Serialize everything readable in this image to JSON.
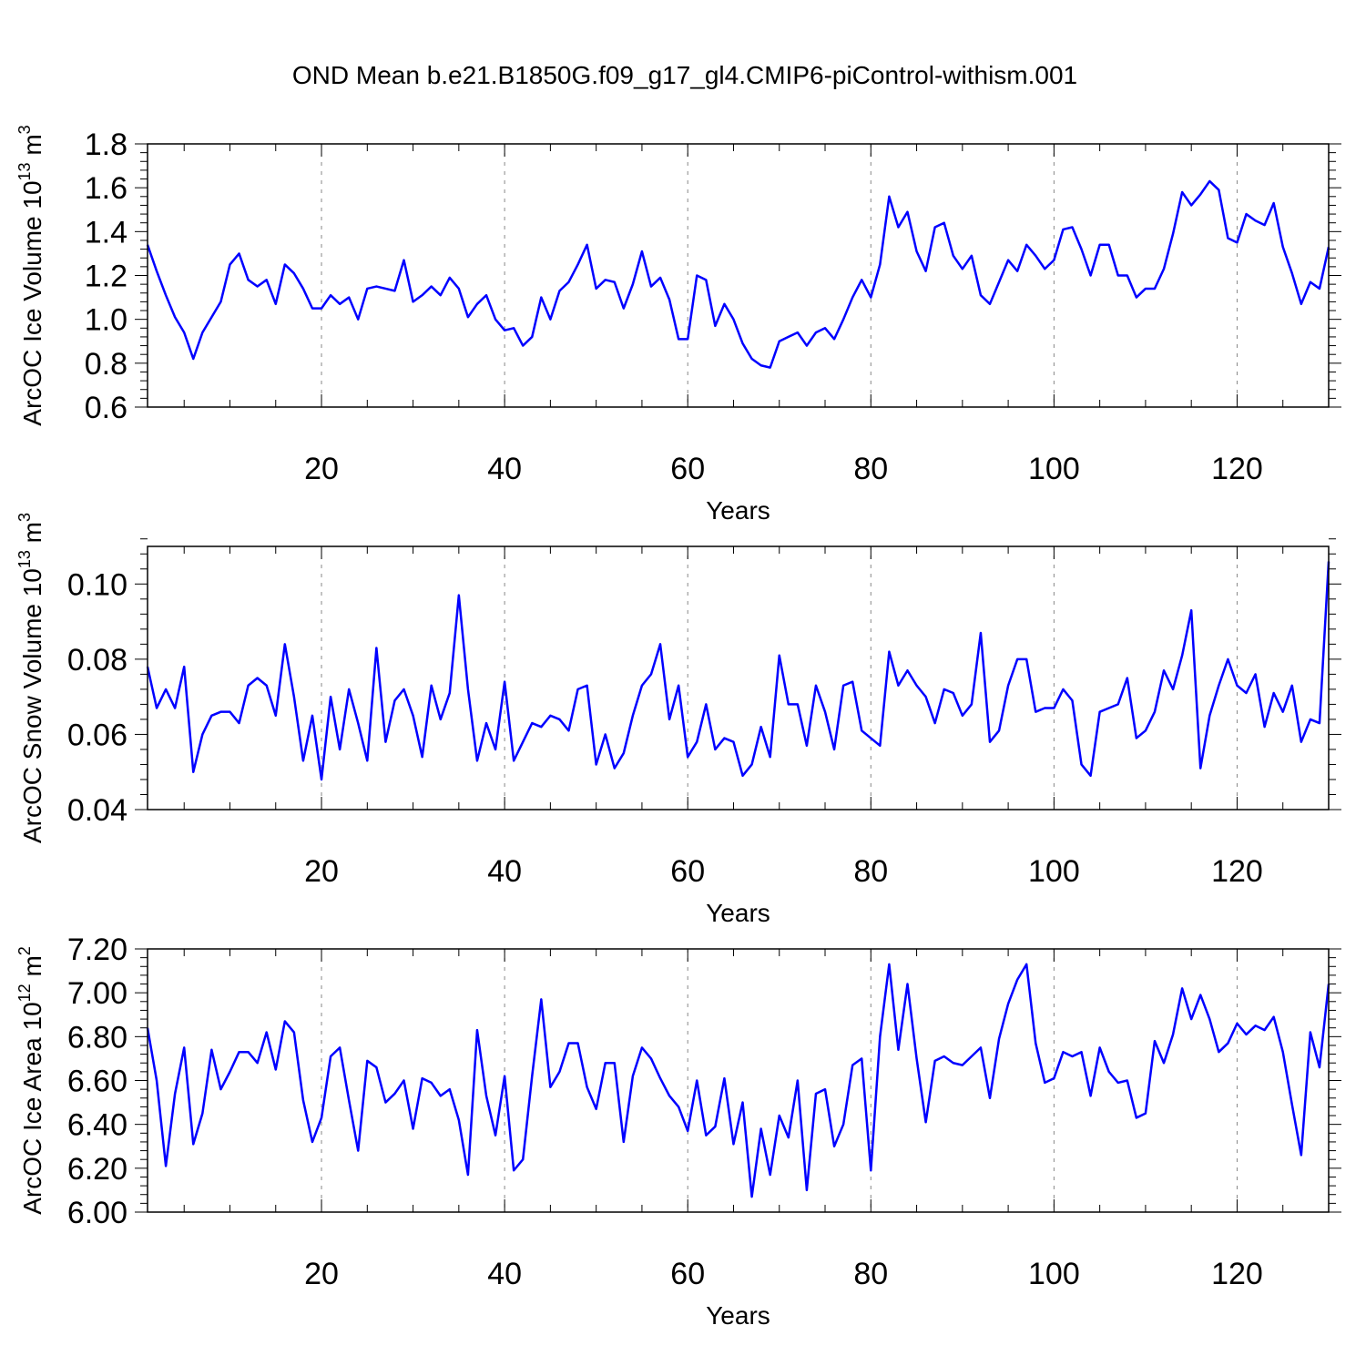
{
  "title": "OND Mean b.e21.B1850G.f09_g17_gl4.CMIP6-piControl-withism.001",
  "chart_data": [
    {
      "type": "line",
      "xlabel": "Years",
      "ylabel": "ArcOC Ice Volume 10",
      "ylabel_exp": "13",
      "ylabel_unit": " m",
      "ylabel_unit_exp": "3",
      "xlim": [
        1,
        130
      ],
      "ylim": [
        0.6,
        1.8
      ],
      "xticks": [
        20,
        40,
        60,
        80,
        100,
        120
      ],
      "xtick_labels": [
        "20",
        "40",
        "60",
        "80",
        "100",
        "120"
      ],
      "yticks": [
        0.6,
        0.8,
        1.0,
        1.2,
        1.4,
        1.6,
        1.8
      ],
      "ytick_labels": [
        "0.6",
        "0.8",
        "1.0",
        "1.2",
        "1.4",
        "1.6",
        "1.8"
      ],
      "grid": "dashed vertical at x ticks",
      "color": "#0000ff",
      "series": [
        {
          "name": "Ice Volume",
          "values": [
            1.34,
            1.22,
            1.11,
            1.01,
            0.94,
            0.82,
            0.94,
            1.01,
            1.08,
            1.25,
            1.3,
            1.18,
            1.15,
            1.18,
            1.07,
            1.25,
            1.21,
            1.14,
            1.05,
            1.05,
            1.11,
            1.07,
            1.1,
            1.0,
            1.14,
            1.15,
            1.14,
            1.13,
            1.27,
            1.08,
            1.11,
            1.15,
            1.11,
            1.19,
            1.14,
            1.01,
            1.07,
            1.11,
            1.0,
            0.95,
            0.96,
            0.88,
            0.92,
            1.1,
            1.0,
            1.13,
            1.17,
            1.25,
            1.34,
            1.14,
            1.18,
            1.17,
            1.05,
            1.16,
            1.31,
            1.15,
            1.19,
            1.09,
            0.91,
            0.91,
            1.2,
            1.18,
            0.97,
            1.07,
            1.0,
            0.89,
            0.82,
            0.79,
            0.78,
            0.9,
            0.92,
            0.94,
            0.88,
            0.94,
            0.96,
            0.91,
            1.0,
            1.1,
            1.18,
            1.1,
            1.25,
            1.56,
            1.42,
            1.49,
            1.31,
            1.22,
            1.42,
            1.44,
            1.29,
            1.23,
            1.29,
            1.11,
            1.07,
            1.17,
            1.27,
            1.22,
            1.34,
            1.29,
            1.23,
            1.27,
            1.41,
            1.42,
            1.32,
            1.2,
            1.34,
            1.34,
            1.2,
            1.2,
            1.1,
            1.14,
            1.14,
            1.23,
            1.39,
            1.58,
            1.52,
            1.57,
            1.63,
            1.59,
            1.37,
            1.35,
            1.48,
            1.45,
            1.43,
            1.53,
            1.33,
            1.21,
            1.07,
            1.17,
            1.14,
            1.33
          ]
        }
      ]
    },
    {
      "type": "line",
      "xlabel": "Years",
      "ylabel": "ArcOC Snow Volume 10",
      "ylabel_exp": "13",
      "ylabel_unit": " m",
      "ylabel_unit_exp": "3",
      "xlim": [
        1,
        130
      ],
      "ylim": [
        0.04,
        0.11
      ],
      "xticks": [
        20,
        40,
        60,
        80,
        100,
        120
      ],
      "xtick_labels": [
        "20",
        "40",
        "60",
        "80",
        "100",
        "120"
      ],
      "yticks": [
        0.04,
        0.06,
        0.08,
        0.1
      ],
      "ytick_labels": [
        "0.04",
        "0.06",
        "0.08",
        "0.10"
      ],
      "grid": "dashed vertical at x ticks",
      "color": "#0000ff",
      "series": [
        {
          "name": "Snow Volume",
          "values": [
            0.078,
            0.067,
            0.072,
            0.067,
            0.078,
            0.05,
            0.06,
            0.065,
            0.066,
            0.066,
            0.063,
            0.073,
            0.075,
            0.073,
            0.065,
            0.084,
            0.07,
            0.053,
            0.065,
            0.048,
            0.07,
            0.056,
            0.072,
            0.063,
            0.053,
            0.083,
            0.058,
            0.069,
            0.072,
            0.065,
            0.054,
            0.073,
            0.064,
            0.071,
            0.097,
            0.072,
            0.053,
            0.063,
            0.056,
            0.074,
            0.053,
            0.058,
            0.063,
            0.062,
            0.065,
            0.064,
            0.061,
            0.072,
            0.073,
            0.052,
            0.06,
            0.051,
            0.055,
            0.065,
            0.073,
            0.076,
            0.084,
            0.064,
            0.073,
            0.054,
            0.058,
            0.068,
            0.056,
            0.059,
            0.058,
            0.049,
            0.052,
            0.062,
            0.054,
            0.081,
            0.068,
            0.068,
            0.057,
            0.073,
            0.066,
            0.056,
            0.073,
            0.074,
            0.061,
            0.059,
            0.057,
            0.082,
            0.073,
            0.077,
            0.073,
            0.07,
            0.063,
            0.072,
            0.071,
            0.065,
            0.068,
            0.087,
            0.058,
            0.061,
            0.073,
            0.08,
            0.08,
            0.066,
            0.067,
            0.067,
            0.072,
            0.069,
            0.052,
            0.049,
            0.066,
            0.067,
            0.068,
            0.075,
            0.059,
            0.061,
            0.066,
            0.077,
            0.072,
            0.081,
            0.093,
            0.051,
            0.065,
            0.073,
            0.08,
            0.073,
            0.071,
            0.076,
            0.062,
            0.071,
            0.066,
            0.073,
            0.058,
            0.064,
            0.063,
            0.106
          ]
        }
      ]
    },
    {
      "type": "line",
      "xlabel": "Years",
      "ylabel": "ArcOC Ice Area 10",
      "ylabel_exp": "12",
      "ylabel_unit": " m",
      "ylabel_unit_exp": "2",
      "xlim": [
        1,
        130
      ],
      "ylim": [
        6.0,
        7.2
      ],
      "xticks": [
        20,
        40,
        60,
        80,
        100,
        120
      ],
      "xtick_labels": [
        "20",
        "40",
        "60",
        "80",
        "100",
        "120"
      ],
      "yticks": [
        6.0,
        6.2,
        6.4,
        6.6,
        6.8,
        7.0,
        7.2
      ],
      "ytick_labels": [
        "6.00",
        "6.20",
        "6.40",
        "6.60",
        "6.80",
        "7.00",
        "7.20"
      ],
      "grid": "dashed vertical at x ticks",
      "color": "#0000ff",
      "series": [
        {
          "name": "Ice Area",
          "values": [
            6.84,
            6.6,
            6.21,
            6.54,
            6.75,
            6.31,
            6.45,
            6.74,
            6.56,
            6.64,
            6.73,
            6.73,
            6.68,
            6.82,
            6.65,
            6.87,
            6.82,
            6.51,
            6.32,
            6.43,
            6.71,
            6.75,
            6.51,
            6.28,
            6.69,
            6.66,
            6.5,
            6.54,
            6.6,
            6.38,
            6.61,
            6.59,
            6.53,
            6.56,
            6.42,
            6.17,
            6.83,
            6.53,
            6.35,
            6.62,
            6.19,
            6.24,
            6.62,
            6.97,
            6.57,
            6.64,
            6.77,
            6.77,
            6.57,
            6.47,
            6.68,
            6.68,
            6.32,
            6.62,
            6.75,
            6.7,
            6.61,
            6.53,
            6.48,
            6.37,
            6.6,
            6.35,
            6.39,
            6.61,
            6.31,
            6.5,
            6.07,
            6.38,
            6.17,
            6.44,
            6.34,
            6.6,
            6.1,
            6.54,
            6.56,
            6.3,
            6.4,
            6.67,
            6.7,
            6.19,
            6.8,
            7.13,
            6.74,
            7.04,
            6.7,
            6.41,
            6.69,
            6.71,
            6.68,
            6.67,
            6.71,
            6.75,
            6.52,
            6.79,
            6.95,
            7.06,
            7.13,
            6.77,
            6.59,
            6.61,
            6.73,
            6.71,
            6.73,
            6.53,
            6.75,
            6.64,
            6.59,
            6.6,
            6.43,
            6.45,
            6.78,
            6.68,
            6.81,
            7.02,
            6.88,
            6.99,
            6.88,
            6.73,
            6.77,
            6.86,
            6.81,
            6.85,
            6.83,
            6.89,
            6.73,
            6.49,
            6.26,
            6.82,
            6.66,
            7.04
          ]
        }
      ]
    }
  ]
}
